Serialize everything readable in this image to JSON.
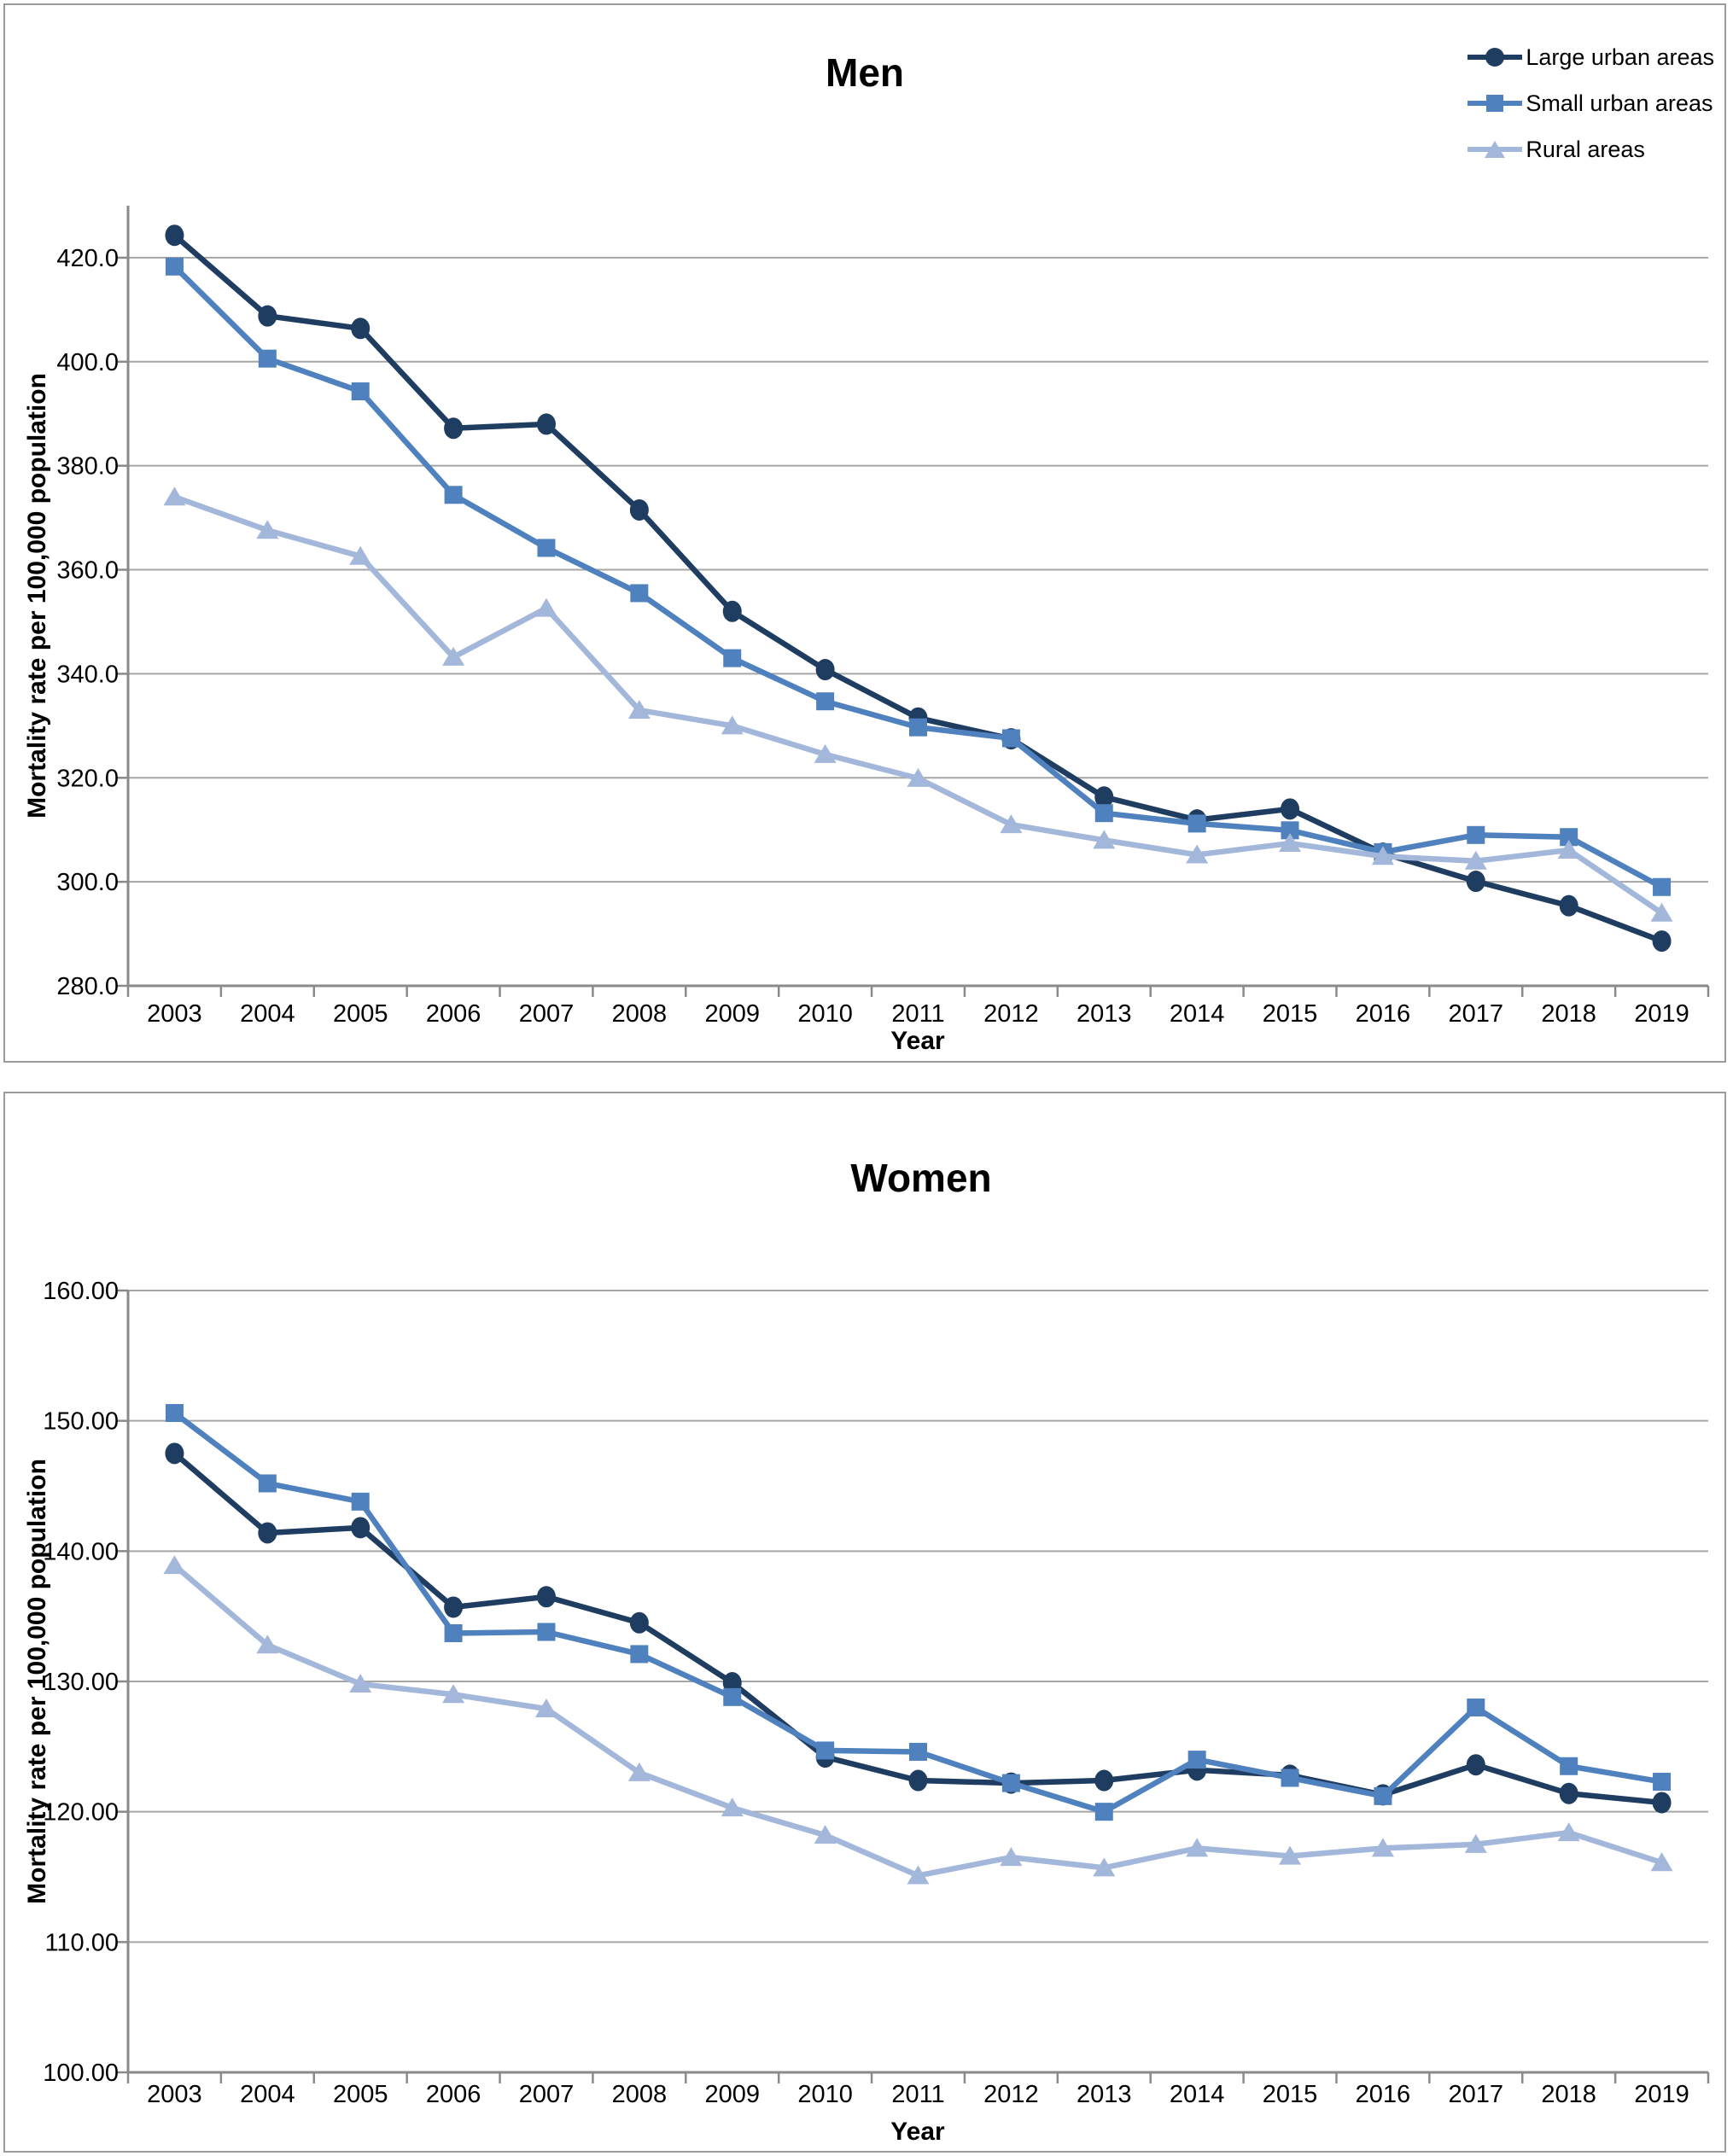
{
  "figure": {
    "panels": [
      "Men",
      "Women"
    ],
    "accent_colors": {
      "large_urban": "#1F3C61",
      "small_urban": "#4E81BD",
      "rural": "#A3B7DB",
      "gridline": "#A6A6A6",
      "axis": "#8A8A8A",
      "panel_border": "#9B9B9B"
    }
  },
  "chart_data": [
    {
      "id": "men",
      "type": "line",
      "title": "Men",
      "xlabel": "Year",
      "ylabel": "Mortality rate per 100,000 population",
      "ylim": [
        280,
        430
      ],
      "ytick_step": 20,
      "ytick_labels": [
        "280.0",
        "300.0",
        "320.0",
        "340.0",
        "360.0",
        "380.0",
        "400.0",
        "420.0"
      ],
      "ytick_format": "0.0",
      "grid": true,
      "legend_position": "top-right",
      "categories": [
        "2003",
        "2004",
        "2005",
        "2006",
        "2007",
        "2008",
        "2009",
        "2010",
        "2011",
        "2012",
        "2013",
        "2014",
        "2015",
        "2016",
        "2017",
        "2018",
        "2019"
      ],
      "series": [
        {
          "name": "Large urban areas",
          "marker": "circle",
          "color": "#1F3C61",
          "values": [
            424.3,
            408.8,
            406.4,
            387.2,
            388.0,
            371.5,
            352.0,
            340.8,
            331.5,
            327.5,
            316.3,
            311.9,
            314.0,
            305.5,
            300.1,
            295.4,
            288.6
          ]
        },
        {
          "name": "Small urban areas",
          "marker": "square",
          "color": "#4E81BD",
          "values": [
            418.3,
            400.6,
            394.3,
            374.4,
            364.2,
            355.5,
            343.0,
            334.7,
            329.7,
            327.6,
            313.2,
            311.2,
            309.9,
            305.7,
            309.0,
            308.6,
            299.0
          ]
        },
        {
          "name": "Rural areas",
          "marker": "triangle",
          "color": "#A3B7DB",
          "values": [
            374.0,
            367.6,
            362.6,
            343.2,
            352.6,
            333.0,
            330.0,
            324.5,
            319.9,
            311.0,
            308.0,
            305.2,
            307.4,
            304.9,
            304.0,
            306.1,
            294.0
          ]
        }
      ]
    },
    {
      "id": "women",
      "type": "line",
      "title": "Women",
      "xlabel": "Year",
      "ylabel": "Mortality rate per 100,000 population",
      "ylim": [
        100,
        160
      ],
      "ytick_step": 10,
      "ytick_labels": [
        "100.00",
        "110.00",
        "120.00",
        "130.00",
        "140.00",
        "150.00",
        "160.00"
      ],
      "ytick_format": "0.00",
      "grid": true,
      "legend_position": "none",
      "categories": [
        "2003",
        "2004",
        "2005",
        "2006",
        "2007",
        "2008",
        "2009",
        "2010",
        "2011",
        "2012",
        "2013",
        "2014",
        "2015",
        "2016",
        "2017",
        "2018",
        "2019"
      ],
      "series": [
        {
          "name": "Large urban areas",
          "marker": "circle",
          "color": "#1F3C61",
          "values": [
            147.5,
            141.4,
            141.8,
            135.7,
            136.5,
            134.5,
            129.9,
            124.2,
            122.4,
            122.2,
            122.4,
            123.2,
            122.8,
            121.3,
            123.6,
            121.4,
            120.7
          ]
        },
        {
          "name": "Small urban areas",
          "marker": "square",
          "color": "#4E81BD",
          "values": [
            150.6,
            145.2,
            143.8,
            133.7,
            133.8,
            132.1,
            128.8,
            124.7,
            124.6,
            122.2,
            120.0,
            124.0,
            122.6,
            121.2,
            128.0,
            123.5,
            122.3
          ]
        },
        {
          "name": "Rural areas",
          "marker": "triangle",
          "color": "#A3B7DB",
          "values": [
            138.9,
            132.8,
            129.8,
            129.0,
            127.9,
            123.0,
            120.3,
            118.2,
            115.1,
            116.5,
            115.7,
            117.2,
            116.6,
            117.2,
            117.5,
            118.4,
            116.1
          ]
        }
      ]
    }
  ]
}
